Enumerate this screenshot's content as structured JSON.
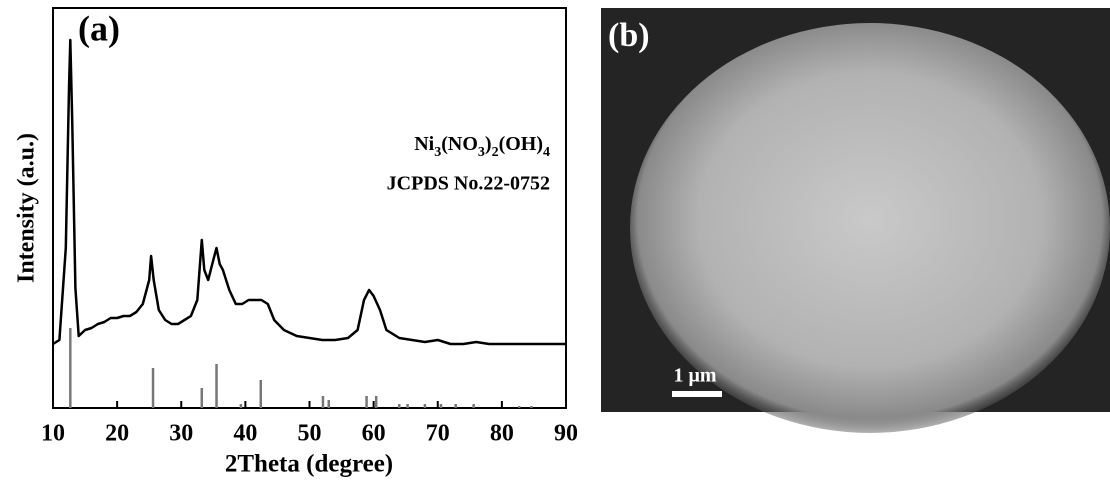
{
  "chart_data": {
    "type": "line",
    "panel_label": "(a)",
    "xlabel": "2Theta (degree)",
    "ylabel": "Intensity (a.u.)",
    "annotations": [
      "Ni3(NO3)2(OH)4",
      "JCPDS No.22-0752"
    ],
    "xlim": [
      10,
      90
    ],
    "xticks": [
      10,
      20,
      30,
      40,
      50,
      60,
      70,
      80,
      90
    ],
    "ylim": [
      0,
      100
    ],
    "series": [
      {
        "type": "line",
        "color": "#000000",
        "x": [
          10,
          11,
          12,
          12.5,
          12.7,
          13,
          13.5,
          14,
          15,
          16,
          17,
          18,
          19,
          20,
          21,
          22,
          23,
          24,
          25,
          25.3,
          25.7,
          26.5,
          27.5,
          28.5,
          29.5,
          30.5,
          31.5,
          32.5,
          33.2,
          33.6,
          34.2,
          35,
          35.5,
          36,
          36.5,
          37.5,
          38.5,
          39.5,
          40.5,
          41.5,
          42.5,
          43.5,
          44.5,
          46,
          48,
          50,
          52,
          54,
          56,
          57.5,
          58.5,
          59.3,
          60,
          61,
          62,
          64,
          66,
          68,
          70,
          72,
          74,
          76,
          78,
          80,
          82,
          84,
          86,
          88,
          90
        ],
        "values": [
          16,
          17,
          40,
          80,
          92,
          72,
          30,
          18,
          19.5,
          20,
          21,
          21.5,
          22.5,
          22.5,
          23,
          23,
          24,
          26,
          32,
          38,
          32,
          24.5,
          22,
          21,
          21,
          22,
          23,
          27,
          42,
          34.5,
          32,
          37,
          40,
          36,
          34.5,
          29.5,
          26,
          26,
          27,
          27,
          27,
          26,
          22,
          19.5,
          18,
          17.5,
          17,
          17,
          17.5,
          19.5,
          27,
          29.5,
          28,
          24.5,
          19.5,
          17.5,
          17,
          16.5,
          17,
          16,
          16,
          16.5,
          16,
          16,
          16,
          16,
          16,
          16,
          16
        ]
      },
      {
        "type": "stem",
        "color": "#777777",
        "x": [
          12.7,
          25.6,
          33.2,
          35.5,
          39.3,
          42.4,
          52.1,
          53.0,
          58.9,
          60.4,
          64.0,
          65.3,
          68,
          70.5,
          72.8,
          75.6,
          82.7,
          84.6
        ],
        "values": [
          20,
          10,
          5,
          11,
          1,
          7,
          3,
          2,
          3,
          3,
          1,
          1,
          1,
          1,
          1,
          1,
          0.5,
          0.5
        ]
      }
    ]
  },
  "image_panel": {
    "panel_label": "(b)",
    "scale_bar": "1 μm"
  }
}
